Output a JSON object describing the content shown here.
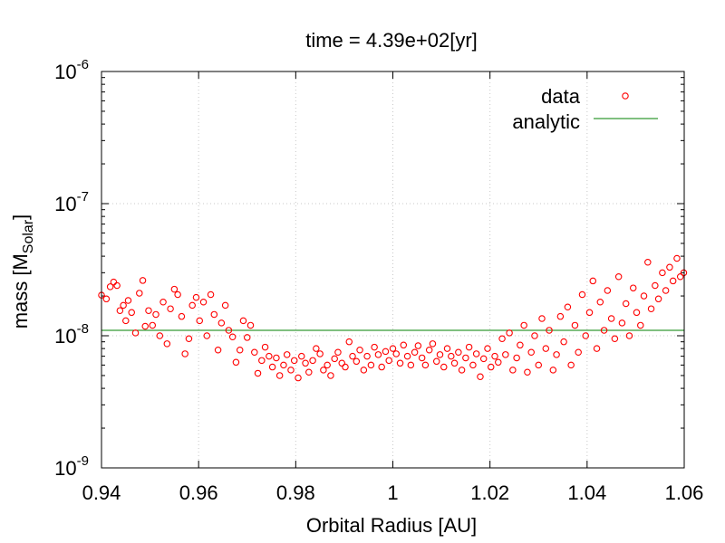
{
  "chart_data": {
    "type": "scatter",
    "title": "time = 4.39e+02[yr]",
    "xlabel": "Orbital Radius [AU]",
    "ylabel": {
      "prefix": "mass [M",
      "subscript": "Solar",
      "suffix": "]"
    },
    "xlim": [
      0.94,
      1.06
    ],
    "ylim": [
      1e-09,
      1e-06
    ],
    "yscale": "log",
    "grid": true,
    "legend_position": "top-right",
    "x_ticks": [
      "0.94",
      "0.96",
      "0.98",
      "1",
      "1.02",
      "1.04",
      "1.06"
    ],
    "y_ticks": [
      {
        "base": "10",
        "exp": "-9"
      },
      {
        "base": "10",
        "exp": "-8"
      },
      {
        "base": "10",
        "exp": "-7"
      },
      {
        "base": "10",
        "exp": "-6"
      }
    ],
    "series": [
      {
        "name": "data",
        "kind": "points",
        "color": "#ff0000",
        "points": [
          [
            0.94,
            2.03e-08
          ],
          [
            0.941,
            1.9e-08
          ],
          [
            0.9418,
            2.35e-08
          ],
          [
            0.9425,
            2.55e-08
          ],
          [
            0.9432,
            2.4e-08
          ],
          [
            0.9438,
            1.55e-08
          ],
          [
            0.9445,
            1.7e-08
          ],
          [
            0.945,
            1.3e-08
          ],
          [
            0.9455,
            1.85e-08
          ],
          [
            0.9462,
            1.5e-08
          ],
          [
            0.947,
            1.05e-08
          ],
          [
            0.9478,
            2.1e-08
          ],
          [
            0.9485,
            2.62e-08
          ],
          [
            0.949,
            1.18e-08
          ],
          [
            0.9497,
            1.55e-08
          ],
          [
            0.9505,
            1.2e-08
          ],
          [
            0.9512,
            1.45e-08
          ],
          [
            0.952,
            1e-08
          ],
          [
            0.9527,
            1.8e-08
          ],
          [
            0.9535,
            8.7e-09
          ],
          [
            0.9542,
            1.6e-08
          ],
          [
            0.955,
            2.25e-08
          ],
          [
            0.9557,
            2.05e-08
          ],
          [
            0.9565,
            1.4e-08
          ],
          [
            0.9572,
            7.3e-09
          ],
          [
            0.958,
            9.5e-09
          ],
          [
            0.9587,
            1.7e-08
          ],
          [
            0.9595,
            1.95e-08
          ],
          [
            0.9602,
            1.3e-08
          ],
          [
            0.961,
            1.8e-08
          ],
          [
            0.9617,
            1e-08
          ],
          [
            0.9625,
            2.05e-08
          ],
          [
            0.9632,
            1.45e-08
          ],
          [
            0.964,
            7.8e-09
          ],
          [
            0.9647,
            1.25e-08
          ],
          [
            0.9655,
            1.7e-08
          ],
          [
            0.9662,
            1.1e-08
          ],
          [
            0.967,
            9.8e-09
          ],
          [
            0.9677,
            6.3e-09
          ],
          [
            0.9685,
            7.8e-09
          ],
          [
            0.9692,
            1.3e-08
          ],
          [
            0.97,
            9.7e-09
          ],
          [
            0.9707,
            1.2e-08
          ],
          [
            0.9715,
            7.5e-09
          ],
          [
            0.9722,
            5.2e-09
          ],
          [
            0.973,
            6.5e-09
          ],
          [
            0.9737,
            8.2e-09
          ],
          [
            0.9745,
            7e-09
          ],
          [
            0.9752,
            5.8e-09
          ],
          [
            0.976,
            6.8e-09
          ],
          [
            0.9767,
            5e-09
          ],
          [
            0.9775,
            6e-09
          ],
          [
            0.9782,
            7.2e-09
          ],
          [
            0.979,
            5.5e-09
          ],
          [
            0.9797,
            6.5e-09
          ],
          [
            0.9805,
            4.8e-09
          ],
          [
            0.9812,
            7e-09
          ],
          [
            0.982,
            6.2e-09
          ],
          [
            0.9827,
            5.3e-09
          ],
          [
            0.9835,
            6.5e-09
          ],
          [
            0.9842,
            8e-09
          ],
          [
            0.985,
            7.3e-09
          ],
          [
            0.9857,
            5.5e-09
          ],
          [
            0.9865,
            6e-09
          ],
          [
            0.9872,
            5e-09
          ],
          [
            0.988,
            6.7e-09
          ],
          [
            0.9887,
            7.5e-09
          ],
          [
            0.9895,
            6.2e-09
          ],
          [
            0.9902,
            5.8e-09
          ],
          [
            0.991,
            9e-09
          ],
          [
            0.9917,
            7e-09
          ],
          [
            0.9925,
            6.4e-09
          ],
          [
            0.9932,
            7.8e-09
          ],
          [
            0.994,
            5.5e-09
          ],
          [
            0.9947,
            7e-09
          ],
          [
            0.9955,
            6e-09
          ],
          [
            0.9962,
            8.2e-09
          ],
          [
            0.997,
            7.2e-09
          ],
          [
            0.9977,
            5.8e-09
          ],
          [
            0.9985,
            7.6e-09
          ],
          [
            0.9992,
            6.5e-09
          ],
          [
            1.0,
            8e-09
          ],
          [
            1.0007,
            7.3e-09
          ],
          [
            1.0015,
            6.2e-09
          ],
          [
            1.0022,
            8.5e-09
          ],
          [
            1.003,
            7e-09
          ],
          [
            1.0037,
            6e-09
          ],
          [
            1.0045,
            7.5e-09
          ],
          [
            1.0052,
            8.4e-09
          ],
          [
            1.006,
            6.8e-09
          ],
          [
            1.0067,
            6e-09
          ],
          [
            1.0075,
            7.8e-09
          ],
          [
            1.0082,
            8.7e-09
          ],
          [
            1.009,
            6.4e-09
          ],
          [
            1.0097,
            7.2e-09
          ],
          [
            1.0105,
            5.8e-09
          ],
          [
            1.0112,
            8e-09
          ],
          [
            1.012,
            7e-09
          ],
          [
            1.0127,
            6.2e-09
          ],
          [
            1.0135,
            7.5e-09
          ],
          [
            1.0142,
            5.5e-09
          ],
          [
            1.015,
            6.8e-09
          ],
          [
            1.0157,
            8.2e-09
          ],
          [
            1.0165,
            6e-09
          ],
          [
            1.0172,
            7.3e-09
          ],
          [
            1.018,
            4.9e-09
          ],
          [
            1.0187,
            6.7e-09
          ],
          [
            1.0195,
            8e-09
          ],
          [
            1.0202,
            5.8e-09
          ],
          [
            1.021,
            7e-09
          ],
          [
            1.0217,
            6.3e-09
          ],
          [
            1.0225,
            9.5e-09
          ],
          [
            1.0232,
            7.2e-09
          ],
          [
            1.024,
            1.05e-08
          ],
          [
            1.0247,
            5.5e-09
          ],
          [
            1.0255,
            6.8e-09
          ],
          [
            1.0262,
            8.5e-09
          ],
          [
            1.027,
            1.2e-08
          ],
          [
            1.0277,
            5.3e-09
          ],
          [
            1.0285,
            7.5e-09
          ],
          [
            1.0292,
            1e-08
          ],
          [
            1.03,
            6e-09
          ],
          [
            1.0307,
            1.35e-08
          ],
          [
            1.0315,
            8e-09
          ],
          [
            1.0322,
            1.1e-08
          ],
          [
            1.033,
            5.5e-09
          ],
          [
            1.0337,
            7.2e-09
          ],
          [
            1.0345,
            1.4e-08
          ],
          [
            1.0352,
            9e-09
          ],
          [
            1.036,
            1.65e-08
          ],
          [
            1.0367,
            6e-09
          ],
          [
            1.0375,
            1.2e-08
          ],
          [
            1.0382,
            7.5e-09
          ],
          [
            1.039,
            2.05e-08
          ],
          [
            1.0397,
            1e-08
          ],
          [
            1.0405,
            1.5e-08
          ],
          [
            1.0412,
            2.6e-08
          ],
          [
            1.042,
            8e-09
          ],
          [
            1.0427,
            1.8e-08
          ],
          [
            1.0435,
            1.1e-08
          ],
          [
            1.0442,
            2.2e-08
          ],
          [
            1.045,
            1.35e-08
          ],
          [
            1.0457,
            9.5e-09
          ],
          [
            1.0465,
            2.8e-08
          ],
          [
            1.0472,
            1.25e-08
          ],
          [
            1.048,
            1.75e-08
          ],
          [
            1.0487,
            1e-08
          ],
          [
            1.0495,
            2.3e-08
          ],
          [
            1.0502,
            1.5e-08
          ],
          [
            1.051,
            1.2e-08
          ],
          [
            1.0517,
            2e-08
          ],
          [
            1.0525,
            3.6e-08
          ],
          [
            1.0532,
            1.6e-08
          ],
          [
            1.054,
            2.4e-08
          ],
          [
            1.0547,
            1.9e-08
          ],
          [
            1.0555,
            3e-08
          ],
          [
            1.0562,
            2.2e-08
          ],
          [
            1.057,
            3.3e-08
          ],
          [
            1.0577,
            2.6e-08
          ],
          [
            1.0585,
            3.85e-08
          ],
          [
            1.0592,
            2.8e-08
          ],
          [
            1.0599,
            3e-08
          ]
        ]
      },
      {
        "name": "analytic",
        "kind": "line",
        "color": "#008000",
        "x": [
          0.94,
          1.06
        ],
        "y": [
          1.1e-08,
          1.1e-08
        ]
      }
    ]
  }
}
